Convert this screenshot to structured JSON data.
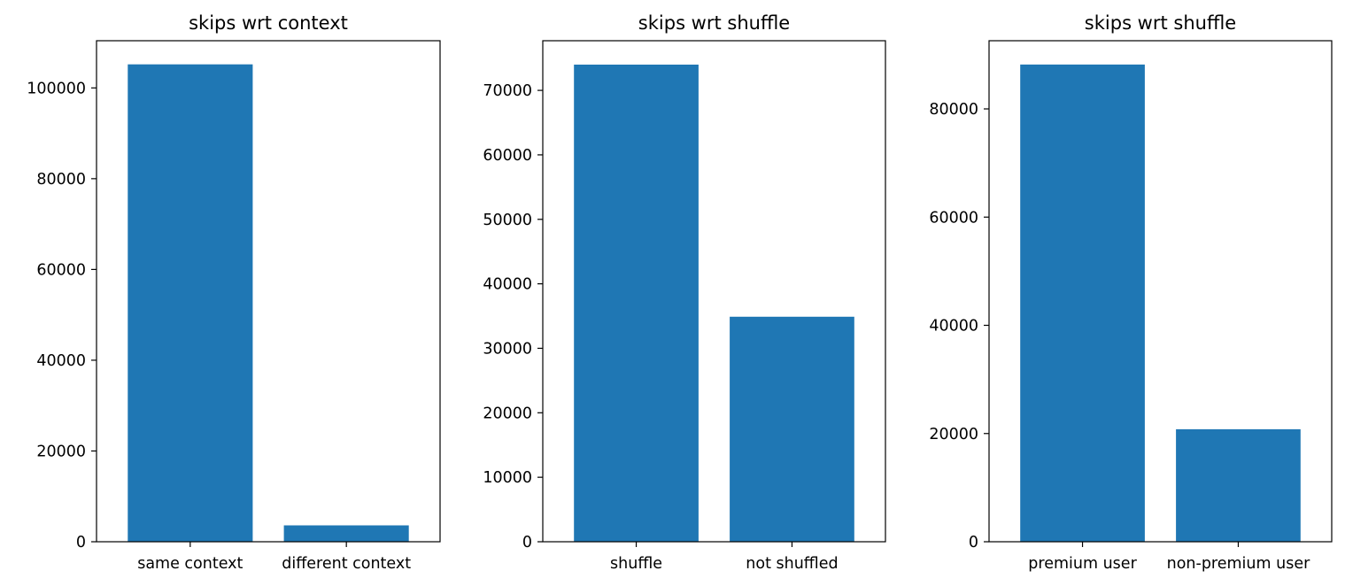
{
  "chart_data": [
    {
      "type": "bar",
      "title": "skips wrt context",
      "categories": [
        "same context",
        "different context"
      ],
      "values": [
        105200,
        3600
      ],
      "ylim": [
        0,
        110400
      ],
      "yticks": [
        0,
        20000,
        40000,
        60000,
        80000,
        100000
      ],
      "xlabel": "",
      "ylabel": "",
      "grid": false,
      "color": "#1f77b4"
    },
    {
      "type": "bar",
      "title": "skips wrt shuffle",
      "categories": [
        "shuffle",
        "not shuffled"
      ],
      "values": [
        74000,
        34900
      ],
      "ylim": [
        0,
        77700
      ],
      "yticks": [
        0,
        10000,
        20000,
        30000,
        40000,
        50000,
        60000,
        70000
      ],
      "xlabel": "",
      "ylabel": "",
      "grid": false,
      "color": "#1f77b4"
    },
    {
      "type": "bar",
      "title": "skips wrt shuffle",
      "categories": [
        "premium user",
        "non-premium user"
      ],
      "values": [
        88200,
        20800
      ],
      "ylim": [
        0,
        92600
      ],
      "yticks": [
        0,
        20000,
        40000,
        60000,
        80000
      ],
      "xlabel": "",
      "ylabel": "",
      "grid": false,
      "color": "#1f77b4"
    }
  ]
}
